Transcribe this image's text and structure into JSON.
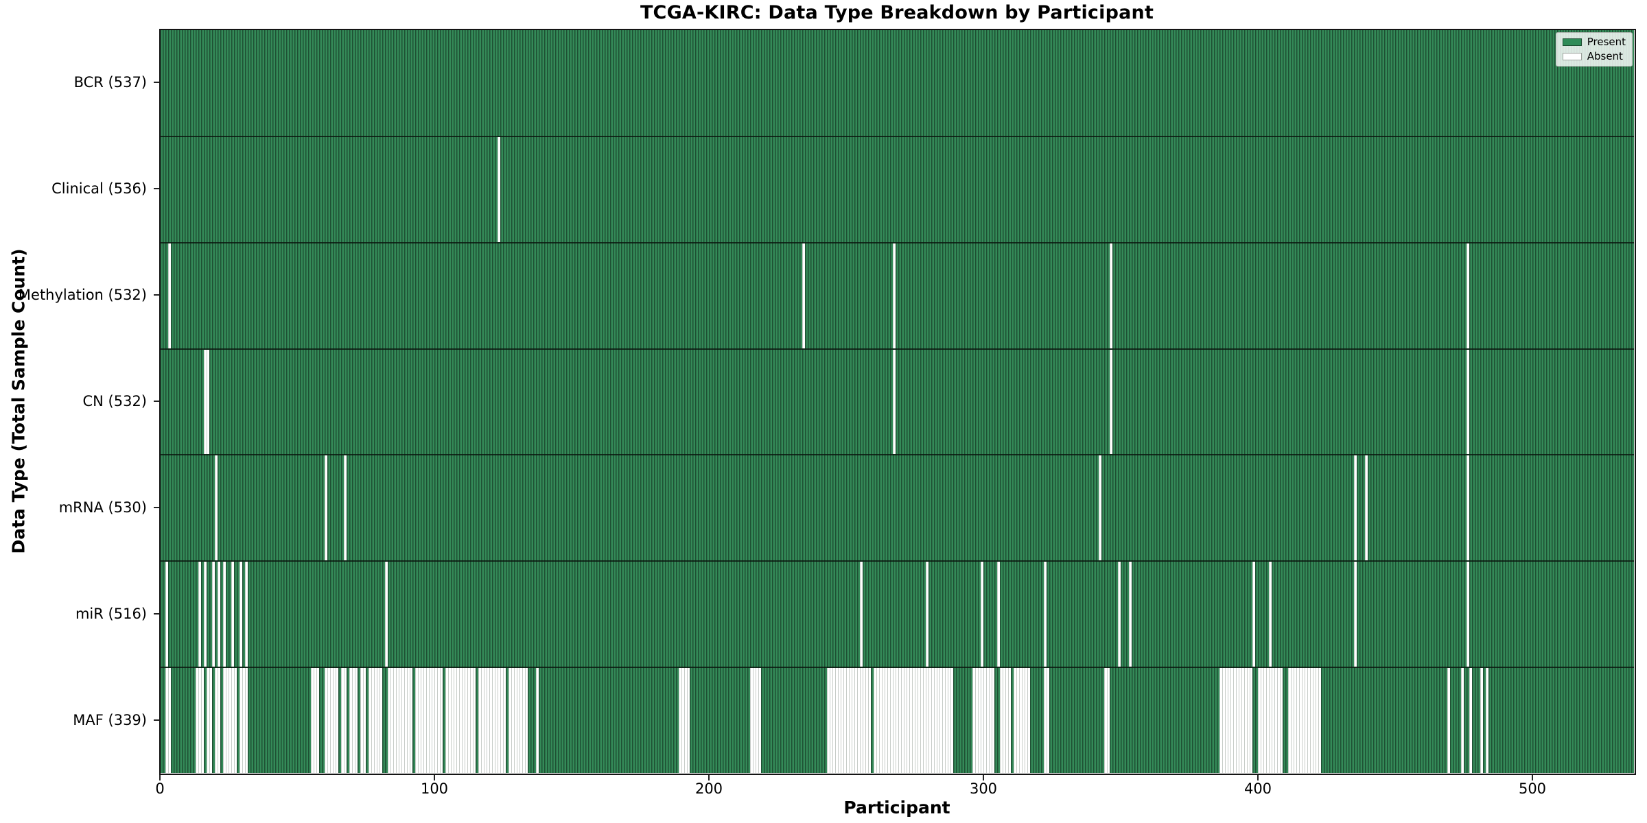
{
  "chart_data": {
    "type": "heatmap",
    "title": "TCGA-KIRC: Data Type Breakdown by Participant",
    "xlabel": "Participant",
    "ylabel": "Data Type (Total Sample Count)",
    "x_ticks": [
      0,
      100,
      200,
      300,
      400,
      500
    ],
    "xlim": [
      0,
      537
    ],
    "n_participants": 537,
    "grid": false,
    "legend_position": "upper right",
    "colors": {
      "present": "#2e8b57",
      "absent": "#ffffff"
    },
    "legend": [
      {
        "key": "present",
        "label": "Present",
        "color": "#2e8b57"
      },
      {
        "key": "absent",
        "label": "Absent",
        "color": "#ffffff"
      }
    ],
    "rows": [
      {
        "name": "bcr",
        "label": "BCR (537)",
        "total_present": 537,
        "absent_ranges": []
      },
      {
        "name": "clinical",
        "label": "Clinical (536)",
        "total_present": 536,
        "absent_ranges": [
          [
            123,
            123
          ]
        ]
      },
      {
        "name": "methylation",
        "label": "Methylation (532)",
        "total_present": 532,
        "absent_ranges": [
          [
            3,
            3
          ],
          [
            234,
            234
          ],
          [
            267,
            267
          ],
          [
            346,
            346
          ],
          [
            476,
            476
          ]
        ]
      },
      {
        "name": "cn",
        "label": "CN (532)",
        "total_present": 532,
        "absent_ranges": [
          [
            16,
            17
          ],
          [
            267,
            267
          ],
          [
            346,
            346
          ],
          [
            476,
            476
          ]
        ]
      },
      {
        "name": "mrna",
        "label": "mRNA (530)",
        "total_present": 530,
        "absent_ranges": [
          [
            20,
            20
          ],
          [
            60,
            60
          ],
          [
            67,
            67
          ],
          [
            342,
            342
          ],
          [
            435,
            435
          ],
          [
            439,
            439
          ],
          [
            476,
            476
          ]
        ]
      },
      {
        "name": "mir",
        "label": "miR (516)",
        "total_present": 516,
        "absent_ranges": [
          [
            2,
            2
          ],
          [
            14,
            14
          ],
          [
            16,
            16
          ],
          [
            19,
            19
          ],
          [
            21,
            21
          ],
          [
            23,
            23
          ],
          [
            26,
            26
          ],
          [
            29,
            29
          ],
          [
            31,
            31
          ],
          [
            82,
            82
          ],
          [
            255,
            255
          ],
          [
            279,
            279
          ],
          [
            299,
            299
          ],
          [
            305,
            305
          ],
          [
            322,
            322
          ],
          [
            349,
            349
          ],
          [
            353,
            353
          ],
          [
            398,
            398
          ],
          [
            404,
            404
          ],
          [
            435,
            435
          ],
          [
            476,
            476
          ]
        ]
      },
      {
        "name": "maf",
        "label": "MAF (339)",
        "total_present": 339,
        "absent_ranges": [
          [
            2,
            3
          ],
          [
            13,
            15
          ],
          [
            17,
            18
          ],
          [
            20,
            21
          ],
          [
            23,
            27
          ],
          [
            29,
            31
          ],
          [
            55,
            57
          ],
          [
            60,
            64
          ],
          [
            66,
            67
          ],
          [
            69,
            71
          ],
          [
            73,
            74
          ],
          [
            76,
            80
          ],
          [
            83,
            91
          ],
          [
            93,
            102
          ],
          [
            104,
            114
          ],
          [
            116,
            125
          ],
          [
            127,
            133
          ],
          [
            137,
            137
          ],
          [
            189,
            192
          ],
          [
            215,
            218
          ],
          [
            243,
            258
          ],
          [
            260,
            288
          ],
          [
            296,
            303
          ],
          [
            306,
            309
          ],
          [
            311,
            316
          ],
          [
            322,
            323
          ],
          [
            344,
            345
          ],
          [
            386,
            397
          ],
          [
            400,
            408
          ],
          [
            411,
            422
          ],
          [
            469,
            469
          ],
          [
            474,
            474
          ],
          [
            477,
            477
          ],
          [
            481,
            481
          ],
          [
            483,
            483
          ]
        ]
      }
    ]
  }
}
